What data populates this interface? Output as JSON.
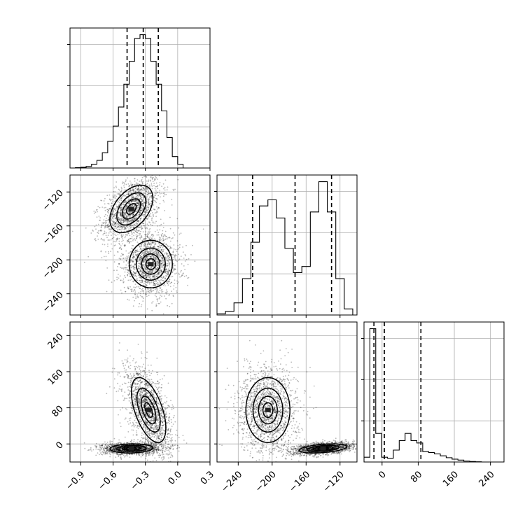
{
  "chart_data": {
    "type": "corner",
    "n_params": 3,
    "param_labels": [
      "",
      "",
      ""
    ],
    "ranges": [
      [
        -1.0,
        0.3
      ],
      [
        -265,
        -100
      ],
      [
        -40,
        270
      ]
    ],
    "ticks": [
      {
        "values": [
          -0.9,
          -0.6,
          -0.3,
          0.0,
          0.3
        ],
        "labels": [
          "−0.9",
          "−0.6",
          "−0.3",
          "0.0",
          "0.3"
        ]
      },
      {
        "values": [
          -240,
          -200,
          -160,
          -120
        ],
        "labels": [
          "−240",
          "−200",
          "−160",
          "−120"
        ]
      },
      {
        "values": [
          0,
          80,
          160,
          240
        ],
        "labels": [
          "0",
          "80",
          "160",
          "240"
        ]
      }
    ],
    "grid": true,
    "histograms": [
      {
        "param": 0,
        "bin_edges": [
          -0.95,
          -0.9,
          -0.85,
          -0.8,
          -0.75,
          -0.7,
          -0.65,
          -0.6,
          -0.55,
          -0.5,
          -0.45,
          -0.4,
          -0.35,
          -0.3,
          -0.25,
          -0.2,
          -0.15,
          -0.1,
          -0.05,
          0.0,
          0.05
        ],
        "counts": [
          0.5,
          1,
          2,
          5,
          10,
          20,
          35,
          55,
          80,
          110,
          140,
          170,
          175,
          170,
          140,
          110,
          75,
          40,
          15,
          5
        ],
        "quantiles": [
          -0.47,
          -0.32,
          -0.18
        ]
      },
      {
        "param": 1,
        "bin_edges": [
          -265,
          -255,
          -245,
          -235,
          -225,
          -215,
          -205,
          -195,
          -185,
          -175,
          -165,
          -155,
          -145,
          -135,
          -125,
          -115,
          -105
        ],
        "counts": [
          1,
          3,
          10,
          30,
          60,
          90,
          95,
          80,
          55,
          35,
          40,
          85,
          110,
          85,
          30,
          5
        ],
        "quantiles": [
          -223,
          -173,
          -130
        ]
      },
      {
        "param": 2,
        "bin_edges": [
          -40,
          -27,
          -14,
          -1,
          12,
          25,
          38,
          51,
          64,
          77,
          90,
          103,
          116,
          129,
          142,
          155,
          168,
          181,
          194,
          207,
          220,
          233
        ],
        "counts": [
          10,
          280,
          60,
          10,
          8,
          25,
          45,
          60,
          45,
          40,
          22,
          20,
          17,
          13,
          9,
          6,
          4,
          2,
          1,
          0.5,
          0
        ],
        "quantiles": [
          -18,
          5,
          86
        ]
      }
    ],
    "joint": [
      {
        "x_param": 0,
        "y_param": 1,
        "modes": [
          {
            "center": [
              -0.43,
              -140
            ],
            "sigma": [
              0.1,
              14
            ],
            "rho": 0.45,
            "weight": 1.0
          },
          {
            "center": [
              -0.25,
              -205
            ],
            "sigma": [
              0.1,
              14
            ],
            "rho": 0.0,
            "weight": 1.0
          }
        ]
      },
      {
        "x_param": 0,
        "y_param": 2,
        "modes": [
          {
            "center": [
              -0.27,
              75
            ],
            "sigma": [
              0.08,
              36
            ],
            "rho": -0.55,
            "weight": 1.0
          },
          {
            "center": [
              -0.43,
              -10
            ],
            "sigma": [
              0.1,
              5
            ],
            "rho": 0.1,
            "weight": 1.0
          }
        ]
      },
      {
        "x_param": 1,
        "y_param": 2,
        "modes": [
          {
            "center": [
              -205,
              75
            ],
            "sigma": [
              13,
              36
            ],
            "rho": 0.0,
            "weight": 1.0
          },
          {
            "center": [
              -140,
              -10
            ],
            "sigma": [
              14,
              5
            ],
            "rho": 0.4,
            "weight": 1.0
          }
        ]
      }
    ]
  }
}
